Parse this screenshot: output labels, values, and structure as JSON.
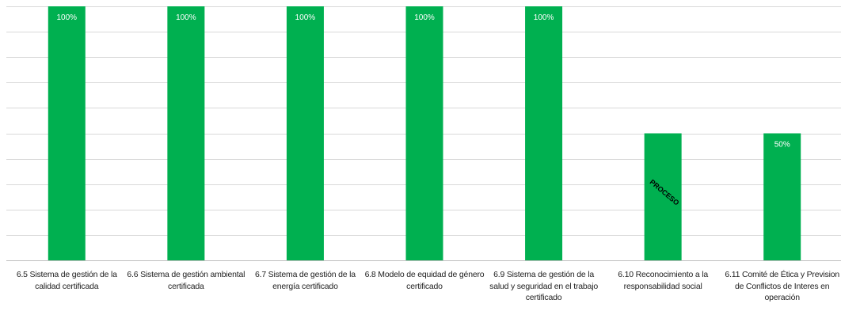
{
  "chart_data": {
    "type": "bar",
    "title": "",
    "xlabel": "",
    "ylabel": "",
    "ylim": [
      0,
      100
    ],
    "grid": true,
    "legend": "none",
    "categories": [
      "6.5 Sistema de gestión de la calidad certificada",
      "6.6 Sistema de gestión ambiental certificada",
      "6.7 Sistema de gestión de la energía certificado",
      "6.8 Modelo de equidad de género certificado",
      "6.9 Sistema de gestión de la salud y seguridad en el trabajo certificado",
      "6.10 Reconocimiento a la responsabilidad social",
      "6.11 Comité de Ética y Prevision de Conflictos de Interes en operación"
    ],
    "values": [
      100,
      100,
      100,
      100,
      100,
      50,
      50
    ],
    "data_labels": [
      "100%",
      "100%",
      "100%",
      "100%",
      "100%",
      "PROCESO",
      "50%"
    ],
    "bar_color": "#00b050",
    "grid_color": "#d9d9d9"
  }
}
